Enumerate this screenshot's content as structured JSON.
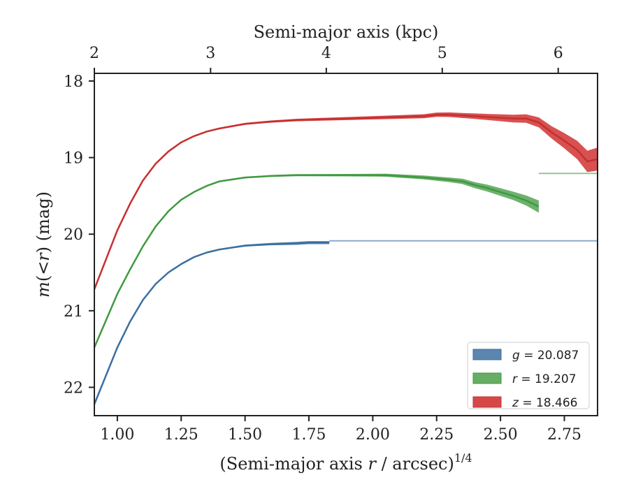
{
  "chart_data": {
    "type": "area",
    "xlabel_bottom": "(Semi-major axis r / arcsec)^{1/4}",
    "xlabel_top": "Semi-major axis (kpc)",
    "ylabel": "m(<r) (mag)",
    "xlim": [
      0.91,
      2.88
    ],
    "ylim": [
      22.37,
      17.9
    ],
    "y_inverted": true,
    "x_ticks": [
      "1.00",
      "1.25",
      "1.50",
      "1.75",
      "2.00",
      "2.25",
      "2.50",
      "2.75"
    ],
    "x_tick_values": [
      1.0,
      1.25,
      1.5,
      1.75,
      2.0,
      2.25,
      2.5,
      2.75
    ],
    "y_ticks": [
      "18",
      "19",
      "20",
      "21",
      "22"
    ],
    "y_tick_values": [
      18,
      19,
      20,
      21,
      22
    ],
    "top_ticks": [
      "2",
      "3",
      "4",
      "5",
      "6"
    ],
    "top_tick_positions": [
      0.91,
      1.365,
      1.818,
      2.272,
      2.726
    ],
    "legend_position": "lower-right",
    "series": [
      {
        "name": "g = 20.087",
        "color": "#3a6f9f",
        "fill": "#5a86b0",
        "asymptote": 20.087,
        "points": [
          [
            0.91,
            22.22
          ],
          [
            1.0,
            21.48
          ],
          [
            1.05,
            21.14
          ],
          [
            1.1,
            20.86
          ],
          [
            1.15,
            20.65
          ],
          [
            1.2,
            20.5
          ],
          [
            1.25,
            20.39
          ],
          [
            1.3,
            20.3
          ],
          [
            1.35,
            20.24
          ],
          [
            1.4,
            20.2
          ],
          [
            1.5,
            20.15
          ],
          [
            1.6,
            20.13
          ],
          [
            1.7,
            20.12
          ],
          [
            1.75,
            20.11
          ],
          [
            1.83,
            20.11
          ]
        ],
        "band": [
          0.005,
          0.006,
          0.006,
          0.006,
          0.006,
          0.006,
          0.006,
          0.006,
          0.007,
          0.008,
          0.012,
          0.015,
          0.02,
          0.02,
          0.02
        ]
      },
      {
        "name": "r = 19.207",
        "color": "#3f9a3f",
        "fill": "#66ad66",
        "asymptote": 19.207,
        "points": [
          [
            0.91,
            21.48
          ],
          [
            1.0,
            20.78
          ],
          [
            1.05,
            20.46
          ],
          [
            1.1,
            20.16
          ],
          [
            1.15,
            19.9
          ],
          [
            1.2,
            19.7
          ],
          [
            1.25,
            19.55
          ],
          [
            1.3,
            19.45
          ],
          [
            1.35,
            19.37
          ],
          [
            1.4,
            19.31
          ],
          [
            1.5,
            19.26
          ],
          [
            1.6,
            19.24
          ],
          [
            1.7,
            19.23
          ],
          [
            1.8,
            19.23
          ],
          [
            1.9,
            19.23
          ],
          [
            2.0,
            19.23
          ],
          [
            2.05,
            19.23
          ],
          [
            2.1,
            19.24
          ],
          [
            2.2,
            19.26
          ],
          [
            2.3,
            19.29
          ],
          [
            2.35,
            19.31
          ],
          [
            2.4,
            19.36
          ],
          [
            2.45,
            19.4
          ],
          [
            2.5,
            19.45
          ],
          [
            2.55,
            19.5
          ],
          [
            2.6,
            19.56
          ],
          [
            2.65,
            19.64
          ]
        ],
        "band": [
          0.005,
          0.006,
          0.006,
          0.006,
          0.006,
          0.006,
          0.007,
          0.007,
          0.008,
          0.008,
          0.01,
          0.012,
          0.014,
          0.015,
          0.016,
          0.018,
          0.02,
          0.022,
          0.025,
          0.03,
          0.035,
          0.04,
          0.045,
          0.05,
          0.055,
          0.065,
          0.08
        ]
      },
      {
        "name": "z = 18.466",
        "color": "#c62f2f",
        "fill": "#d64848",
        "asymptote": 18.466,
        "points": [
          [
            0.91,
            20.72
          ],
          [
            1.0,
            19.95
          ],
          [
            1.05,
            19.6
          ],
          [
            1.1,
            19.3
          ],
          [
            1.15,
            19.08
          ],
          [
            1.2,
            18.92
          ],
          [
            1.25,
            18.8
          ],
          [
            1.3,
            18.72
          ],
          [
            1.35,
            18.66
          ],
          [
            1.4,
            18.62
          ],
          [
            1.5,
            18.56
          ],
          [
            1.6,
            18.53
          ],
          [
            1.7,
            18.51
          ],
          [
            1.8,
            18.5
          ],
          [
            1.9,
            18.49
          ],
          [
            2.0,
            18.48
          ],
          [
            2.1,
            18.47
          ],
          [
            2.2,
            18.46
          ],
          [
            2.25,
            18.44
          ],
          [
            2.3,
            18.44
          ],
          [
            2.35,
            18.45
          ],
          [
            2.4,
            18.46
          ],
          [
            2.45,
            18.47
          ],
          [
            2.5,
            18.48
          ],
          [
            2.55,
            18.49
          ],
          [
            2.6,
            18.49
          ],
          [
            2.65,
            18.54
          ],
          [
            2.7,
            18.67
          ],
          [
            2.75,
            18.78
          ],
          [
            2.8,
            18.9
          ],
          [
            2.84,
            19.05
          ],
          [
            2.88,
            19.02
          ]
        ],
        "band": [
          0.005,
          0.006,
          0.006,
          0.006,
          0.006,
          0.006,
          0.007,
          0.007,
          0.008,
          0.01,
          0.012,
          0.014,
          0.016,
          0.018,
          0.02,
          0.022,
          0.024,
          0.026,
          0.028,
          0.03,
          0.033,
          0.036,
          0.04,
          0.045,
          0.05,
          0.055,
          0.065,
          0.08,
          0.1,
          0.12,
          0.14,
          0.15
        ]
      }
    ]
  }
}
